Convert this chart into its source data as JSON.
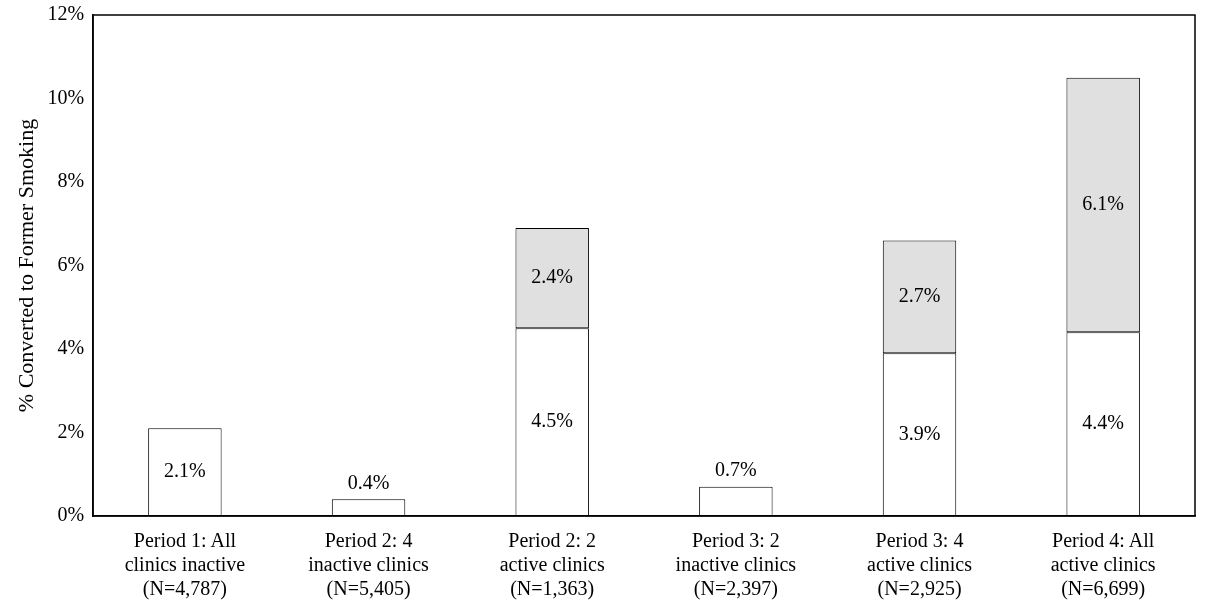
{
  "chart_data": {
    "type": "bar",
    "stacked": true,
    "ylabel": "% Converted to Former Smoking",
    "categories": [
      "Period 1: All\nclinics inactive\n(N=4,787)",
      "Period 2: 4\ninactive clinics\n(N=5,405)",
      "Period 2: 2\nactive clinics\n(N=1,363)",
      "Period 3: 2\ninactive clinics\n(N=2,397)",
      "Period 3: 4\nactive clinics\n(N=2,925)",
      "Period 4: All\nactive clinics\n(N=6,699)"
    ],
    "series": [
      {
        "color": "#ffffff",
        "values": [
          2.1,
          0.4,
          4.5,
          0.7,
          3.9,
          4.4
        ],
        "value_labels": [
          "2.1%",
          "0.4%",
          "4.5%",
          "0.7%",
          "3.9%",
          "4.4%"
        ]
      },
      {
        "color": "#e0e0e0",
        "values": [
          null,
          null,
          2.4,
          null,
          2.7,
          6.1
        ],
        "value_labels": [
          null,
          null,
          "2.4%",
          null,
          "2.7%",
          "6.1%"
        ]
      }
    ],
    "ylim": [
      0,
      12
    ],
    "yticks": [
      {
        "value": 0,
        "label": "0%"
      },
      {
        "value": 2,
        "label": "2%"
      },
      {
        "value": 4,
        "label": "4%"
      },
      {
        "value": 6,
        "label": "6%"
      },
      {
        "value": 8,
        "label": "8%"
      },
      {
        "value": 10,
        "label": "10%"
      },
      {
        "value": 12,
        "label": "12%"
      }
    ],
    "grid": false,
    "legend": false
  }
}
